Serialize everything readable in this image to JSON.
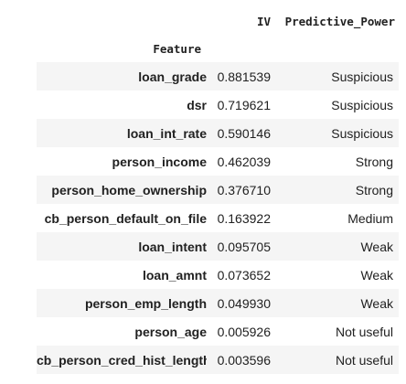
{
  "table": {
    "columns": [
      "IV",
      "Predictive_Power"
    ],
    "index_name": "Feature",
    "rows": [
      {
        "feature": "loan_grade",
        "iv": "0.881539",
        "power": "Suspicious"
      },
      {
        "feature": "dsr",
        "iv": "0.719621",
        "power": "Suspicious"
      },
      {
        "feature": "loan_int_rate",
        "iv": "0.590146",
        "power": "Suspicious"
      },
      {
        "feature": "person_income",
        "iv": "0.462039",
        "power": "Strong"
      },
      {
        "feature": "person_home_ownership",
        "iv": "0.376710",
        "power": "Strong"
      },
      {
        "feature": "cb_person_default_on_file",
        "iv": "0.163922",
        "power": "Medium"
      },
      {
        "feature": "loan_intent",
        "iv": "0.095705",
        "power": "Weak"
      },
      {
        "feature": "loan_amnt",
        "iv": "0.073652",
        "power": "Weak"
      },
      {
        "feature": "person_emp_length",
        "iv": "0.049930",
        "power": "Weak"
      },
      {
        "feature": "person_age",
        "iv": "0.005926",
        "power": "Not useful"
      },
      {
        "feature": "cb_person_cred_hist_length",
        "iv": "0.003596",
        "power": "Not useful"
      }
    ]
  }
}
